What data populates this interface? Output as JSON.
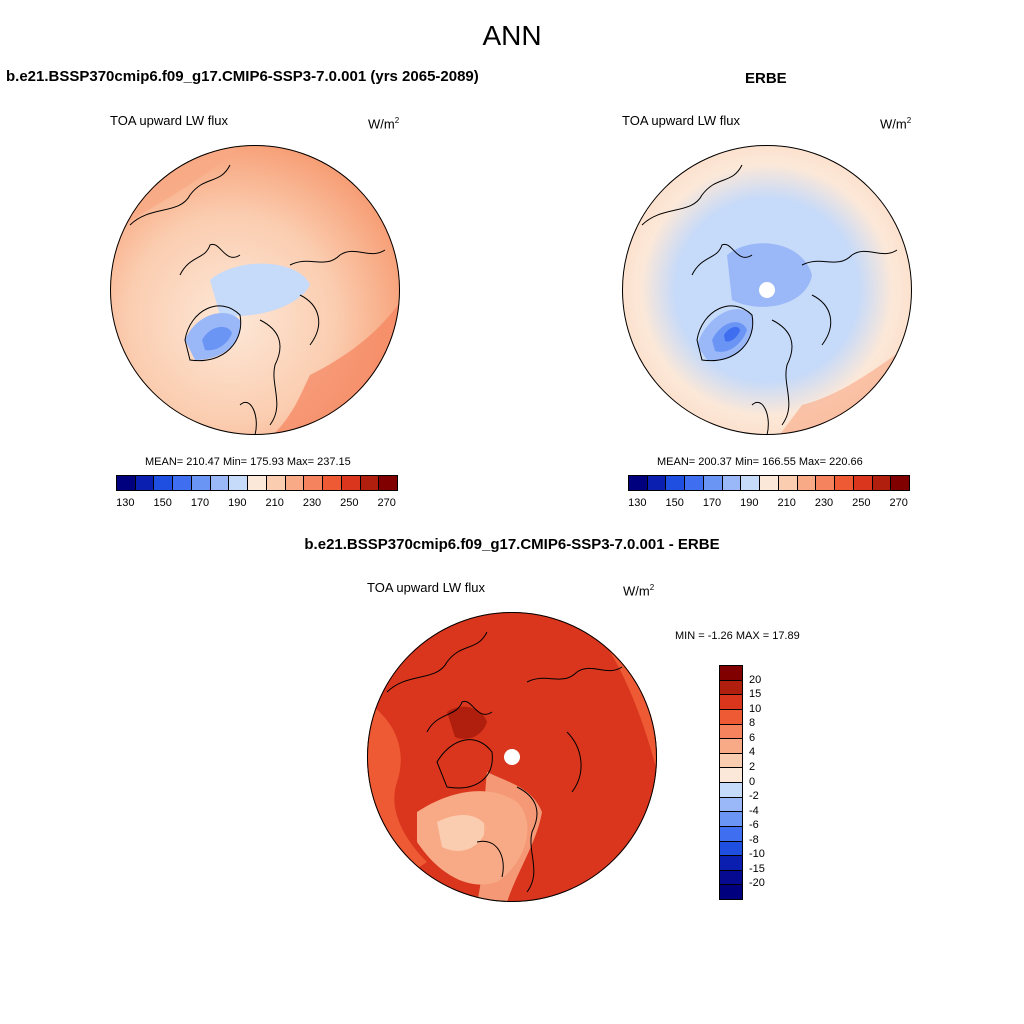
{
  "main_title": "ANN",
  "model_title": "b.e21.BSSP370cmip6.f09_g17.CMIP6-SSP3-7.0.001 (yrs 2065-2089)",
  "obs_title": "ERBE",
  "diff_title": "b.e21.BSSP370cmip6.f09_g17.CMIP6-SSP3-7.0.001 - ERBE",
  "variable": "TOA upward LW flux",
  "units": {
    "base": "W/m",
    "sup": "2"
  },
  "model_stats": "MEAN= 210.47  Min= 175.93  Max= 237.15",
  "obs_stats": "MEAN= 200.37  Min= 166.55  Max= 220.66",
  "diff_stats": "MIN =  -1.26 MAX =  17.89",
  "abs_colorbar": {
    "colors": [
      "#00007f",
      "#0a1fb0",
      "#1f4fe0",
      "#3f6ff0",
      "#6b95f5",
      "#9ab8f8",
      "#c6daf9",
      "#fce8d8",
      "#fbcdb0",
      "#f8a985",
      "#f5835e",
      "#ee5a34",
      "#d9361d",
      "#b01e0e",
      "#800000"
    ],
    "tick_labels": [
      "130",
      "150",
      "170",
      "190",
      "210",
      "230",
      "250",
      "270"
    ]
  },
  "diff_colorbar": {
    "colors": [
      "#800000",
      "#b01e0e",
      "#d9361d",
      "#ee5a34",
      "#f5835e",
      "#f8a985",
      "#fbcdb0",
      "#fce8d8",
      "#c6daf9",
      "#9ab8f8",
      "#6b95f5",
      "#3f6ff0",
      "#1f4fe0",
      "#0a1fb0",
      "#050a90",
      "#00007f"
    ],
    "tick_labels": [
      "20",
      "15",
      "10",
      "8",
      "6",
      "4",
      "2",
      "0",
      "-2",
      "-4",
      "-6",
      "-8",
      "-10",
      "-15",
      "-20"
    ]
  }
}
